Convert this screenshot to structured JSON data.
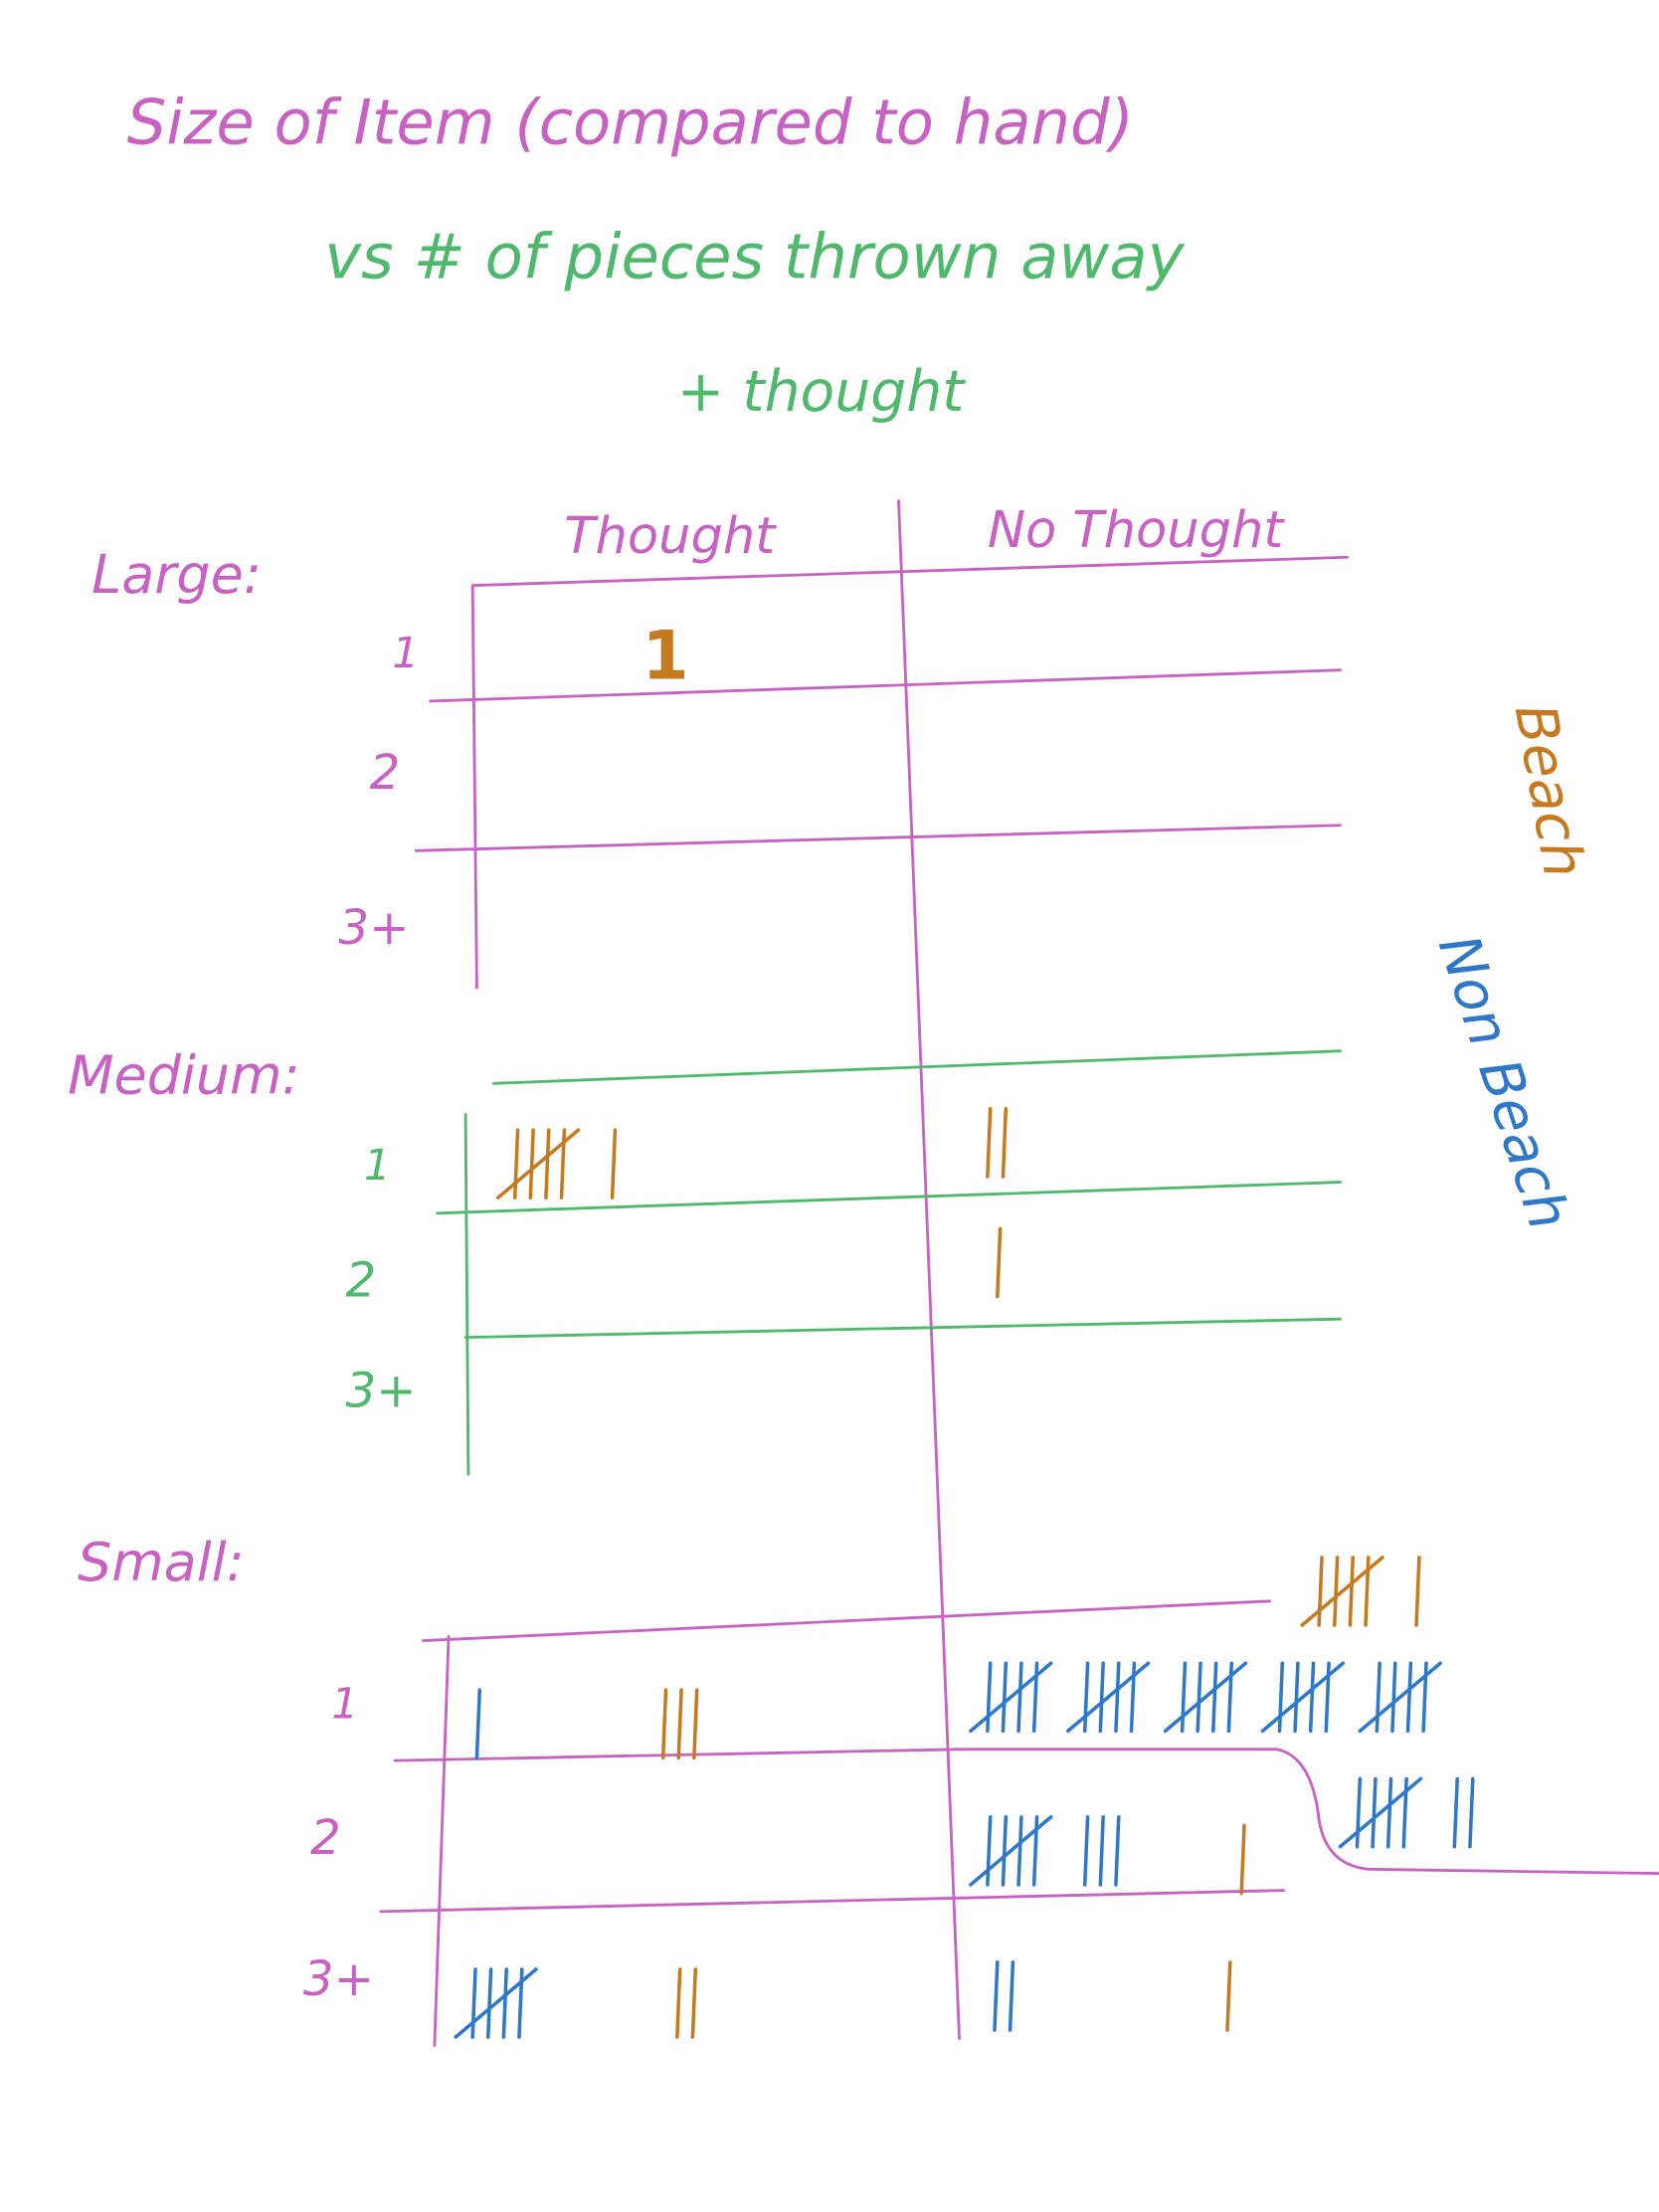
{
  "header": {
    "title": "Size of Item (compared to hand)",
    "subtitle": "vs # of pieces thrown away",
    "note": "+ thought"
  },
  "columns": [
    "Thought",
    "No Thought"
  ],
  "legend": [
    {
      "label": "Beach",
      "color": "#c67a20"
    },
    {
      "label": "Non Beach",
      "color": "#2f78c8"
    }
  ],
  "sections": [
    {
      "label": "Large:",
      "rows": [
        {
          "label": "1",
          "thought": [
            {
              "color": "#c67a20",
              "count": 1
            }
          ],
          "no_thought": []
        },
        {
          "label": "2",
          "thought": [],
          "no_thought": []
        },
        {
          "label": "3+",
          "thought": [],
          "no_thought": []
        }
      ]
    },
    {
      "label": "Medium:",
      "rows": [
        {
          "label": "1",
          "thought": [
            {
              "color": "#c67a20",
              "count": 6
            }
          ],
          "no_thought": [
            {
              "color": "#c67a20",
              "count": 2
            }
          ]
        },
        {
          "label": "2",
          "thought": [],
          "no_thought": [
            {
              "color": "#c67a20",
              "count": 1
            }
          ]
        },
        {
          "label": "3+",
          "thought": [],
          "no_thought": []
        }
      ]
    },
    {
      "label": "Small:",
      "rows": [
        {
          "label": "1",
          "thought": [
            {
              "color": "#2f78c8",
              "count": 1
            },
            {
              "color": "#c67a20",
              "count": 3
            }
          ],
          "no_thought": [
            {
              "color": "#2f78c8",
              "count": 25
            },
            {
              "color": "#c67a20",
              "count": 6
            },
            {
              "color": "#2f78c8",
              "count": 7
            }
          ]
        },
        {
          "label": "2",
          "thought": [],
          "no_thought": [
            {
              "color": "#2f78c8",
              "count": 8
            },
            {
              "color": "#c67a20",
              "count": 1
            }
          ]
        },
        {
          "label": "3+",
          "thought": [
            {
              "color": "#2f78c8",
              "count": 5
            },
            {
              "color": "#c67a20",
              "count": 2
            }
          ],
          "no_thought": [
            {
              "color": "#2f78c8",
              "count": 2
            },
            {
              "color": "#c67a20",
              "count": 1
            }
          ]
        }
      ]
    }
  ]
}
